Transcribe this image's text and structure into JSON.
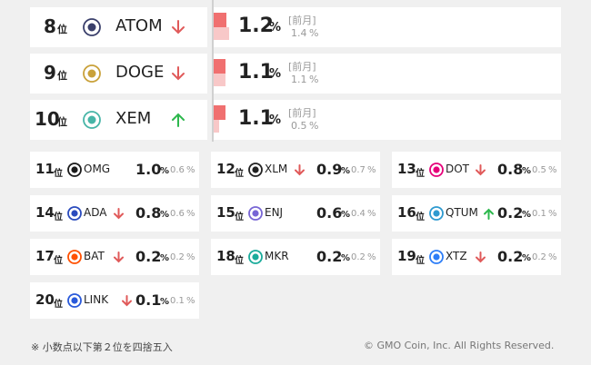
{
  "rank_suffix": "位",
  "unit": "%",
  "prev_month_label": "[前月]",
  "featured": [
    {
      "rank": "8",
      "name": "ATOM",
      "trend": "down",
      "value": "1.2",
      "prev": "1.4",
      "icon_color": "#3a3f6b"
    },
    {
      "rank": "9",
      "name": "DOGE",
      "trend": "down",
      "value": "1.1",
      "prev": "1.1",
      "icon_color": "#c9a13a"
    },
    {
      "rank": "10",
      "name": "XEM",
      "trend": "up",
      "value": "1.1",
      "prev": "0.5",
      "icon_color": "#47b5a7"
    }
  ],
  "others": [
    {
      "rank": "11",
      "name": "OMG",
      "trend": null,
      "value": "1.0",
      "prev": "0.6",
      "icon_color": "#1a1a1a"
    },
    {
      "rank": "12",
      "name": "XLM",
      "trend": "down",
      "value": "0.9",
      "prev": "0.7",
      "icon_color": "#222222"
    },
    {
      "rank": "13",
      "name": "DOT",
      "trend": "down",
      "value": "0.8",
      "prev": "0.5",
      "icon_color": "#e6007a"
    },
    {
      "rank": "14",
      "name": "ADA",
      "trend": "down",
      "value": "0.8",
      "prev": "0.6",
      "icon_color": "#2a4bbd"
    },
    {
      "rank": "15",
      "name": "ENJ",
      "trend": null,
      "value": "0.6",
      "prev": "0.4",
      "icon_color": "#7866d5"
    },
    {
      "rank": "16",
      "name": "QTUM",
      "trend": "up",
      "value": "0.2",
      "prev": "0.1",
      "icon_color": "#2e9ad0"
    },
    {
      "rank": "17",
      "name": "BAT",
      "trend": "down",
      "value": "0.2",
      "prev": "0.2",
      "icon_color": "#ff5000"
    },
    {
      "rank": "18",
      "name": "MKR",
      "trend": null,
      "value": "0.2",
      "prev": "0.2",
      "icon_color": "#1aab9b"
    },
    {
      "rank": "19",
      "name": "XTZ",
      "trend": "down",
      "value": "0.2",
      "prev": "0.2",
      "icon_color": "#2c7df7"
    },
    {
      "rank": "20",
      "name": "LINK",
      "trend": "down",
      "value": "0.1",
      "prev": "0.1",
      "icon_color": "#2a5ada"
    }
  ],
  "footer": {
    "note": "※ 小数点以下第２位を四捨五入",
    "copyright": "© GMO Coin, Inc. All Rights Reserved."
  }
}
